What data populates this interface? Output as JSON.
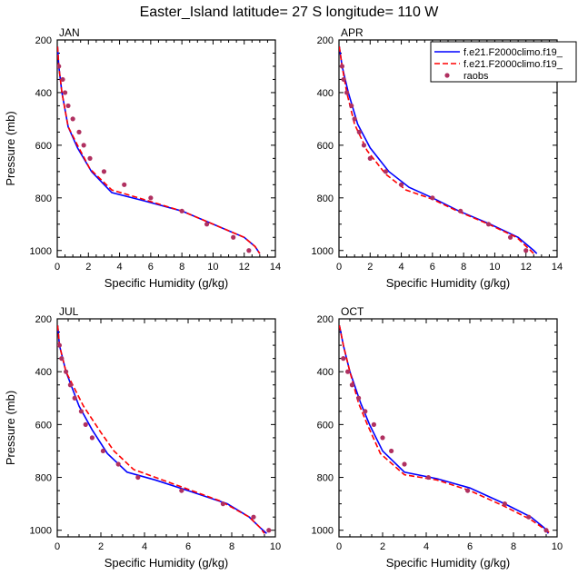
{
  "figure": {
    "title": "Easter_Island  latitude= 27 S longitude= 110 W"
  },
  "colors": {
    "model1": "#0000ff",
    "model2": "#ff0000",
    "obs": "#b03060",
    "axis": "#000000"
  },
  "legend": {
    "placement": "top-right of APR panel",
    "entries": [
      {
        "label": "f.e21.F2000climo.f19_",
        "style": "solid-line",
        "color": "#0000ff"
      },
      {
        "label": "f.e21.F2000climo.f19_",
        "style": "dashed-line",
        "color": "#ff0000"
      },
      {
        "label": "raobs",
        "style": "marker",
        "color": "#b03060"
      }
    ]
  },
  "chart_data": [
    {
      "type": "line",
      "title": "JAN",
      "xlabel": "Specific Humidity (g/kg)",
      "ylabel": "Pressure (mb)",
      "xlim": [
        0,
        14
      ],
      "ylim": [
        200,
        1025
      ],
      "y_inverted": true,
      "xticks": [
        0,
        2,
        4,
        6,
        8,
        10,
        12,
        14
      ],
      "yticks": [
        200,
        400,
        600,
        800,
        1000
      ],
      "series": [
        {
          "style": "solid",
          "color": "#0000ff",
          "points": [
            [
              0.02,
              225
            ],
            [
              0.1,
              300
            ],
            [
              0.3,
              400
            ],
            [
              0.7,
              530
            ],
            [
              1.3,
              610
            ],
            [
              2.2,
              700
            ],
            [
              3.5,
              780
            ],
            [
              5.5,
              810
            ],
            [
              8.0,
              850
            ],
            [
              10.0,
              900
            ],
            [
              12.0,
              950
            ],
            [
              12.7,
              985
            ],
            [
              13.0,
              1012
            ]
          ]
        },
        {
          "style": "dashed",
          "color": "#ff0000",
          "points": [
            [
              0.02,
              225
            ],
            [
              0.1,
              300
            ],
            [
              0.3,
              400
            ],
            [
              0.7,
              530
            ],
            [
              1.3,
              600
            ],
            [
              2.1,
              690
            ],
            [
              3.5,
              770
            ],
            [
              5.5,
              805
            ],
            [
              8.0,
              850
            ],
            [
              10.0,
              900
            ],
            [
              12.0,
              950
            ],
            [
              12.7,
              985
            ],
            [
              13.0,
              1012
            ]
          ]
        },
        {
          "style": "markers",
          "color": "#b03060",
          "points": [
            [
              0.1,
              300
            ],
            [
              0.35,
              350
            ],
            [
              0.5,
              400
            ],
            [
              0.7,
              450
            ],
            [
              1.0,
              500
            ],
            [
              1.4,
              550
            ],
            [
              1.7,
              600
            ],
            [
              2.1,
              650
            ],
            [
              3.0,
              700
            ],
            [
              4.3,
              750
            ],
            [
              6.0,
              800
            ],
            [
              8.0,
              850
            ],
            [
              9.6,
              900
            ],
            [
              11.3,
              950
            ],
            [
              12.3,
              1000
            ]
          ]
        }
      ]
    },
    {
      "type": "line",
      "title": "APR",
      "xlabel": "Specific Humidity (g/kg)",
      "ylabel": "",
      "xlim": [
        0,
        14
      ],
      "ylim": [
        200,
        1025
      ],
      "y_inverted": true,
      "xticks": [
        0,
        2,
        4,
        6,
        8,
        10,
        12,
        14
      ],
      "yticks": [
        200,
        400,
        600,
        800,
        1000
      ],
      "series": [
        {
          "style": "solid",
          "color": "#0000ff",
          "points": [
            [
              0.02,
              225
            ],
            [
              0.2,
              300
            ],
            [
              0.6,
              400
            ],
            [
              1.2,
              520
            ],
            [
              2.0,
              610
            ],
            [
              3.2,
              700
            ],
            [
              4.5,
              760
            ],
            [
              6.0,
              800
            ],
            [
              7.7,
              850
            ],
            [
              9.7,
              900
            ],
            [
              11.5,
              950
            ],
            [
              12.5,
              1000
            ],
            [
              12.7,
              1012
            ]
          ]
        },
        {
          "style": "dashed",
          "color": "#ff0000",
          "points": [
            [
              0.02,
              225
            ],
            [
              0.2,
              300
            ],
            [
              0.5,
              400
            ],
            [
              1.0,
              520
            ],
            [
              1.8,
              620
            ],
            [
              3.0,
              710
            ],
            [
              4.3,
              770
            ],
            [
              6.0,
              805
            ],
            [
              7.6,
              850
            ],
            [
              9.6,
              900
            ],
            [
              11.4,
              950
            ],
            [
              12.3,
              1000
            ],
            [
              12.5,
              1012
            ]
          ]
        },
        {
          "style": "markers",
          "color": "#b03060",
          "points": [
            [
              0.2,
              300
            ],
            [
              0.3,
              350
            ],
            [
              0.5,
              400
            ],
            [
              0.8,
              450
            ],
            [
              1.0,
              500
            ],
            [
              1.3,
              550
            ],
            [
              1.6,
              600
            ],
            [
              2.0,
              650
            ],
            [
              3.0,
              700
            ],
            [
              4.0,
              750
            ],
            [
              6.0,
              800
            ],
            [
              7.8,
              850
            ],
            [
              9.6,
              900
            ],
            [
              11.0,
              950
            ],
            [
              12.0,
              1000
            ]
          ]
        }
      ]
    },
    {
      "type": "line",
      "title": "JUL",
      "xlabel": "Specific Humidity (g/kg)",
      "ylabel": "Pressure (mb)",
      "xlim": [
        0,
        10
      ],
      "ylim": [
        200,
        1025
      ],
      "y_inverted": true,
      "xticks": [
        0,
        2,
        4,
        6,
        8,
        10
      ],
      "yticks": [
        200,
        400,
        600,
        800,
        1000
      ],
      "series": [
        {
          "style": "solid",
          "color": "#0000ff",
          "points": [
            [
              0.02,
              225
            ],
            [
              0.1,
              300
            ],
            [
              0.4,
              400
            ],
            [
              1.0,
              530
            ],
            [
              1.6,
              620
            ],
            [
              2.3,
              710
            ],
            [
              3.2,
              780
            ],
            [
              4.5,
              810
            ],
            [
              6.0,
              850
            ],
            [
              7.8,
              900
            ],
            [
              8.8,
              950
            ],
            [
              9.3,
              990
            ],
            [
              9.6,
              1012
            ]
          ]
        },
        {
          "style": "dashed",
          "color": "#ff0000",
          "points": [
            [
              0.02,
              225
            ],
            [
              0.1,
              300
            ],
            [
              0.4,
              400
            ],
            [
              1.2,
              530
            ],
            [
              2.0,
              630
            ],
            [
              2.6,
              700
            ],
            [
              3.5,
              770
            ],
            [
              5.5,
              830
            ],
            [
              7.5,
              890
            ],
            [
              8.8,
              950
            ],
            [
              9.3,
              990
            ],
            [
              9.5,
              1012
            ]
          ]
        },
        {
          "style": "markers",
          "color": "#b03060",
          "points": [
            [
              0.1,
              300
            ],
            [
              0.2,
              350
            ],
            [
              0.4,
              400
            ],
            [
              0.6,
              450
            ],
            [
              0.8,
              500
            ],
            [
              1.1,
              550
            ],
            [
              1.3,
              600
            ],
            [
              1.6,
              650
            ],
            [
              2.1,
              700
            ],
            [
              2.8,
              750
            ],
            [
              3.7,
              800
            ],
            [
              5.7,
              850
            ],
            [
              7.6,
              900
            ],
            [
              9.0,
              950
            ],
            [
              9.7,
              1000
            ]
          ]
        }
      ]
    },
    {
      "type": "line",
      "title": "OCT",
      "xlabel": "Specific Humidity (g/kg)",
      "ylabel": "",
      "xlim": [
        0,
        10
      ],
      "ylim": [
        200,
        1025
      ],
      "y_inverted": true,
      "xticks": [
        0,
        2,
        4,
        6,
        8,
        10
      ],
      "yticks": [
        200,
        400,
        600,
        800,
        1000
      ],
      "series": [
        {
          "style": "solid",
          "color": "#0000ff",
          "points": [
            [
              0.02,
              225
            ],
            [
              0.2,
              300
            ],
            [
              0.5,
              400
            ],
            [
              1.0,
              520
            ],
            [
              1.4,
              600
            ],
            [
              2.0,
              700
            ],
            [
              3.0,
              780
            ],
            [
              4.5,
              805
            ],
            [
              6.0,
              840
            ],
            [
              7.6,
              900
            ],
            [
              8.8,
              950
            ],
            [
              9.4,
              990
            ],
            [
              9.6,
              1012
            ]
          ]
        },
        {
          "style": "dashed",
          "color": "#ff0000",
          "points": [
            [
              0.02,
              225
            ],
            [
              0.2,
              300
            ],
            [
              0.5,
              400
            ],
            [
              0.9,
              520
            ],
            [
              1.3,
              600
            ],
            [
              1.9,
              710
            ],
            [
              3.0,
              790
            ],
            [
              4.5,
              810
            ],
            [
              6.0,
              850
            ],
            [
              7.6,
              910
            ],
            [
              8.8,
              960
            ],
            [
              9.5,
              1000
            ],
            [
              9.7,
              1012
            ]
          ]
        },
        {
          "style": "markers",
          "color": "#b03060",
          "points": [
            [
              0.2,
              350
            ],
            [
              0.4,
              400
            ],
            [
              0.6,
              450
            ],
            [
              0.9,
              500
            ],
            [
              1.2,
              550
            ],
            [
              1.6,
              600
            ],
            [
              2.0,
              650
            ],
            [
              2.4,
              700
            ],
            [
              3.0,
              750
            ],
            [
              4.1,
              800
            ],
            [
              5.9,
              850
            ],
            [
              7.6,
              900
            ],
            [
              8.7,
              950
            ],
            [
              9.5,
              1000
            ]
          ]
        }
      ]
    }
  ]
}
